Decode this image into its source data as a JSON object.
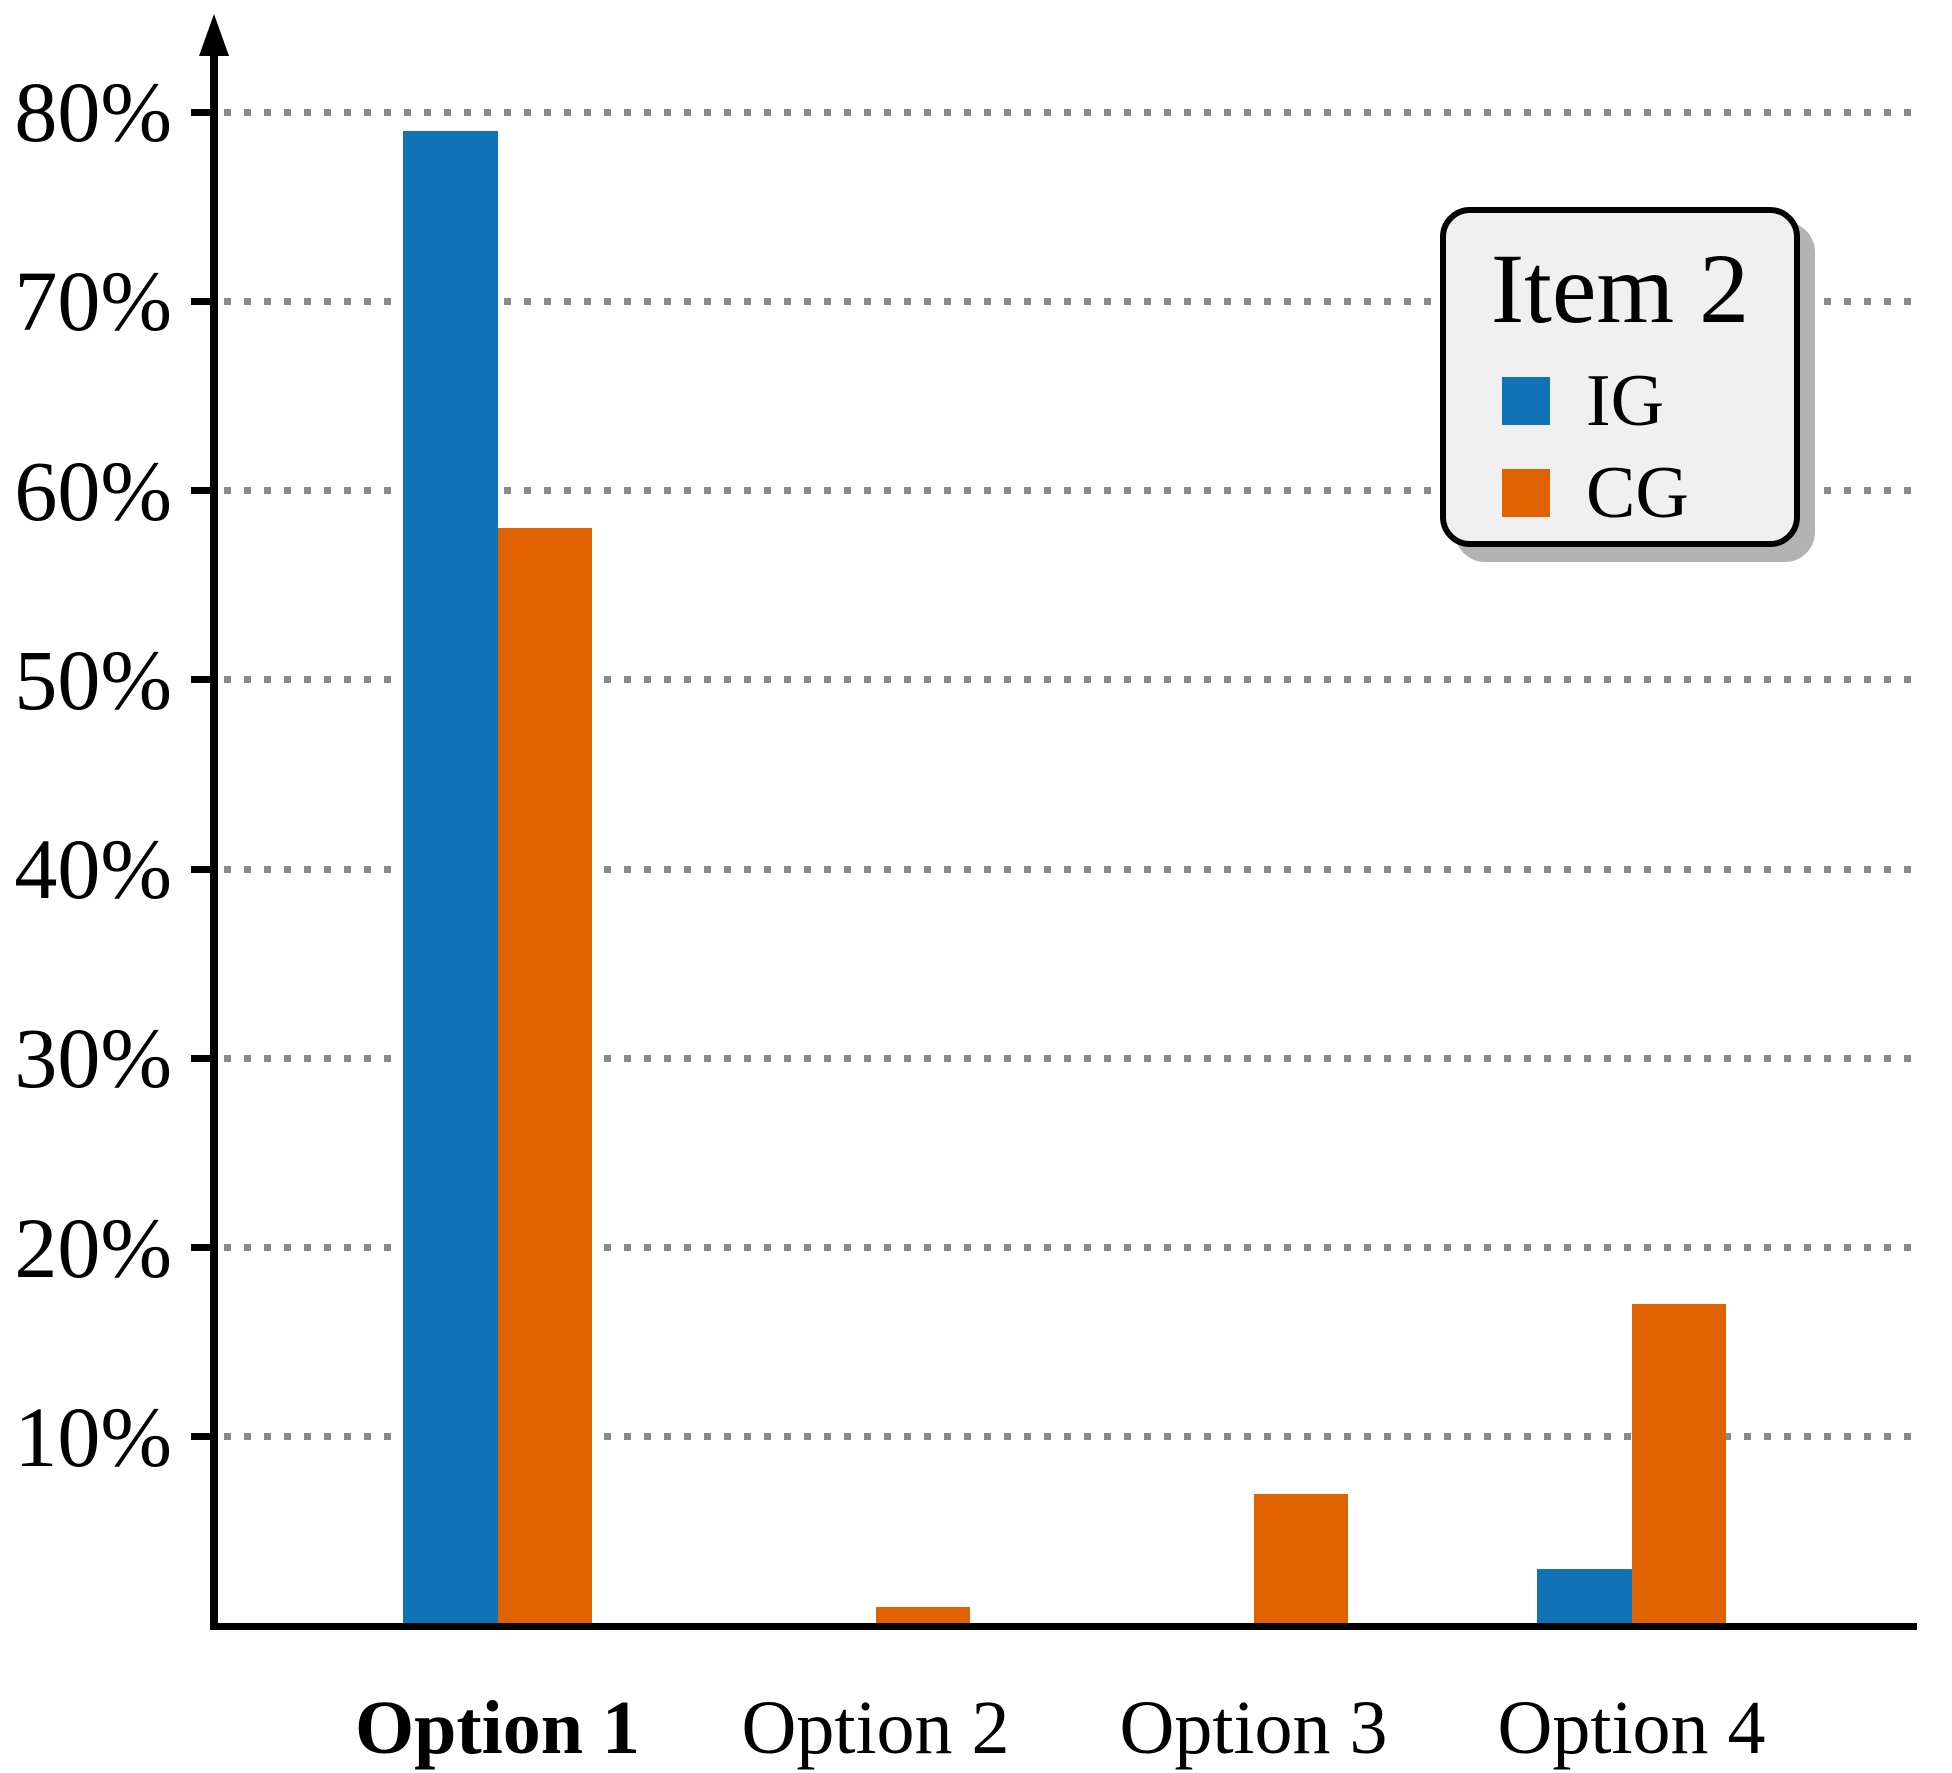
{
  "chart_data": {
    "type": "bar",
    "title": "",
    "unit": "%",
    "legend": {
      "title": "Item 2",
      "position": "top-right"
    },
    "categories": [
      {
        "label": "Option 1",
        "bold": true
      },
      {
        "label": "Option 2",
        "bold": false
      },
      {
        "label": "Option 3",
        "bold": false
      },
      {
        "label": "Option 4",
        "bold": false
      }
    ],
    "series": [
      {
        "name": "IG",
        "color": "#1173b5",
        "values": [
          79,
          0,
          0,
          3
        ]
      },
      {
        "name": "CG",
        "color": "#df6100",
        "values": [
          58,
          1,
          7,
          17
        ]
      }
    ],
    "yticks": [
      {
        "value": 10,
        "label": "10%"
      },
      {
        "value": 20,
        "label": "20%"
      },
      {
        "value": 30,
        "label": "30%"
      },
      {
        "value": 40,
        "label": "40%"
      },
      {
        "value": 50,
        "label": "50%"
      },
      {
        "value": 60,
        "label": "60%"
      },
      {
        "value": 70,
        "label": "70%"
      },
      {
        "value": 80,
        "label": "80%"
      }
    ],
    "ylim": [
      0,
      85
    ],
    "grid": "horizontal-dotted"
  },
  "colors": {
    "grid": "#8a8a8a",
    "axis": "#000000",
    "legend_background": "#f0f0f0",
    "legend_shadow": "#b3b3b3"
  }
}
